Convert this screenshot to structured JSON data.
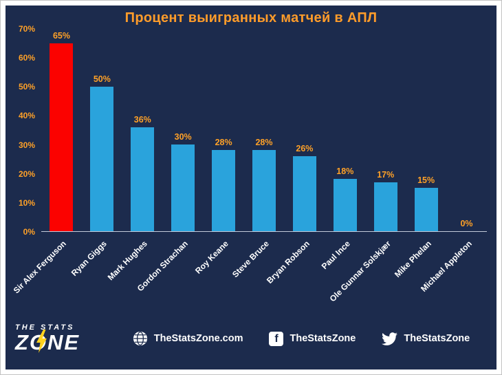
{
  "chart_data": {
    "type": "bar",
    "title": "Процент выигранных матчей в АПЛ",
    "categories": [
      "Sir Alex Ferguson",
      "Ryan Giggs",
      "Mark Hughes",
      "Gordon Strachan",
      "Roy Keane",
      "Steve Bruce",
      "Bryan Robson",
      "Paul Ince",
      "Ole Gunnar Solskjær",
      "Mike Phelan",
      "Michael Appleton"
    ],
    "values": [
      65,
      50,
      36,
      30,
      28,
      28,
      26,
      18,
      17,
      15,
      0
    ],
    "value_labels": [
      "65%",
      "50%",
      "36%",
      "30%",
      "28%",
      "28%",
      "26%",
      "18%",
      "17%",
      "15%",
      "0%"
    ],
    "xlabel": "",
    "ylabel": "",
    "ylim": [
      0,
      70
    ],
    "yticks": [
      {
        "value": 0,
        "label": "0%"
      },
      {
        "value": 10,
        "label": "10%"
      },
      {
        "value": 20,
        "label": "20%"
      },
      {
        "value": 30,
        "label": "30%"
      },
      {
        "value": 40,
        "label": "40%"
      },
      {
        "value": 50,
        "label": "50%"
      },
      {
        "value": 60,
        "label": "60%"
      },
      {
        "value": 70,
        "label": "70%"
      }
    ],
    "grid": false,
    "legend": false,
    "bar_color": "#2aa3dc",
    "highlight_color": "#fb0200",
    "highlight_index": 0,
    "value_label_color": "#ffa127",
    "tick_color": "#ffa127",
    "category_label_color": "#ffffff",
    "background_color": "#1c2b4d",
    "axis_line_color": "#c4cbda"
  },
  "footer": {
    "logo": {
      "top": "THE STATS",
      "bottom": "ZONE",
      "bolt_color": "#ffd21e",
      "bolt_icon": "lightning-bolt-icon"
    },
    "links": [
      {
        "icon": "globe-icon",
        "label": "TheStatsZone.com"
      },
      {
        "icon": "facebook-icon",
        "glyph": "f",
        "label": "TheStatsZone"
      },
      {
        "icon": "twitter-icon",
        "label": "TheStatsZone"
      }
    ]
  }
}
